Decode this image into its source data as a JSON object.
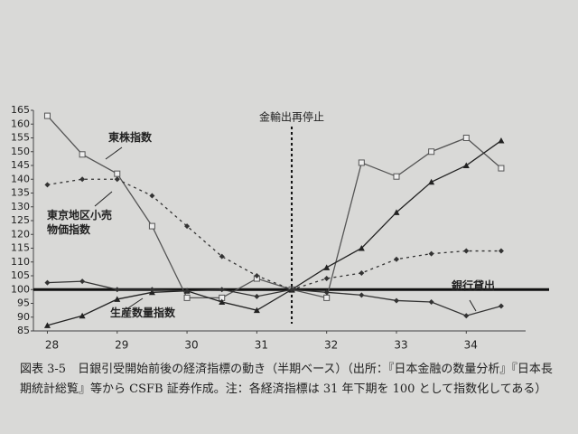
{
  "chart_data": {
    "type": "line",
    "x": [
      28,
      28.5,
      29,
      29.5,
      30,
      30.5,
      31,
      31.5,
      32,
      32.5,
      33,
      33.5,
      34,
      34.5
    ],
    "xlim": [
      27.8,
      34.85
    ],
    "xticks": [
      28,
      29,
      30,
      31,
      32,
      33,
      34
    ],
    "ylim": [
      85,
      165
    ],
    "yticks": [
      85,
      90,
      95,
      100,
      105,
      110,
      115,
      120,
      125,
      130,
      135,
      140,
      145,
      150,
      155,
      160,
      165
    ],
    "hline": 100,
    "vline": {
      "x": 31.5,
      "label": "金輸出再停止"
    },
    "series": [
      {
        "name": "東株指数",
        "color": "#555555",
        "marker": "square",
        "dash": false,
        "values": [
          163,
          149,
          142,
          123,
          97,
          97,
          104,
          100,
          97,
          146,
          141,
          150,
          155,
          144
        ]
      },
      {
        "name": "東京地区小売物価指数",
        "color": "#333333",
        "marker": "diamond",
        "dash": true,
        "values": [
          138,
          140,
          140,
          134,
          123,
          112,
          105,
          100,
          104,
          106,
          111,
          113,
          114,
          114
        ]
      },
      {
        "name": "生産数量指数",
        "color": "#222222",
        "marker": "triangle",
        "dash": false,
        "values": [
          87,
          90.5,
          96.5,
          99,
          99.5,
          95.5,
          92.5,
          100,
          108,
          115,
          128,
          139,
          145,
          154
        ]
      },
      {
        "name": "銀行貸出",
        "color": "#333333",
        "marker": "diamond",
        "dash": false,
        "values": [
          102.5,
          103,
          100,
          100,
          99.5,
          100,
          97.5,
          100,
          99,
          98,
          96,
          95.5,
          90.5,
          94
        ]
      }
    ],
    "caption": "図表 3-5　日銀引受開始前後の経済指標の動き（半期ベース）（出所：『日本金融の数量分析』『日本長期統計総覧』等から CSFB 証券作成。注：各経済指標は 31 年下期を 100 として指数化してある）"
  }
}
